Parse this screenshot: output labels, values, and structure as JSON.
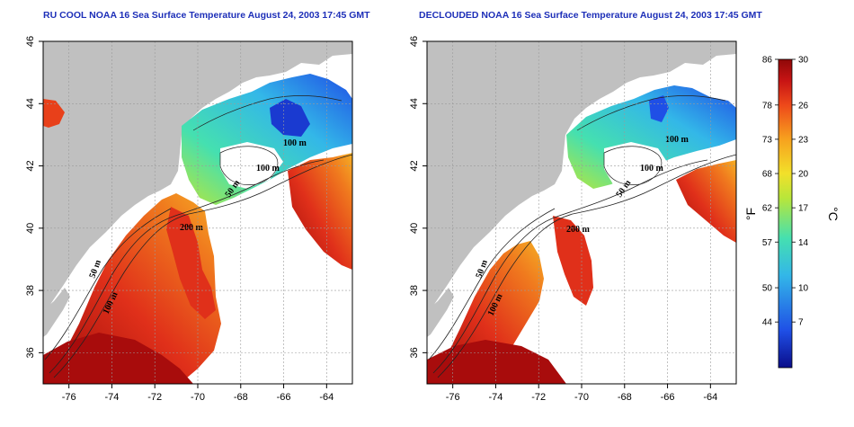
{
  "panels": [
    {
      "title": "RU COOL NOAA 16 Sea Surface Temperature August 24, 2003 17:45 GMT",
      "contour_labels": [
        "100 m",
        "100 m",
        "50 m",
        "200 m",
        "50 m",
        "100 m"
      ]
    },
    {
      "title": "DECLOUDED NOAA 16 Sea Surface Temperature August 24, 2003 17:45 GMT",
      "contour_labels": [
        "100 m",
        "100 m",
        "50 m",
        "200 m",
        "50 m",
        "100 m"
      ]
    }
  ],
  "axes": {
    "x_ticks": [
      "-76",
      "-74",
      "-72",
      "-70",
      "-68",
      "-66",
      "-64"
    ],
    "y_ticks": [
      "36",
      "38",
      "40",
      "42",
      "44",
      "46"
    ],
    "lon_range": [
      -77.2,
      -62.8
    ],
    "lat_range": [
      35.0,
      46.0
    ],
    "grid": "dotted"
  },
  "colorbar": {
    "fahrenheit_ticks": [
      "86",
      "78",
      "73",
      "68",
      "62",
      "57",
      "50",
      "44"
    ],
    "celsius_ticks": [
      "30",
      "26",
      "23",
      "20",
      "17",
      "14",
      "10",
      "7"
    ],
    "fahrenheit_unit": "°F",
    "celsius_unit": "°C",
    "range_c": [
      3,
      30
    ],
    "colors": [
      "#0a0d8a",
      "#1f4fe6",
      "#33b7e8",
      "#45e0b0",
      "#b8e63a",
      "#f2e02a",
      "#f7a21e",
      "#ee4a1a",
      "#c81414",
      "#8f0808"
    ]
  },
  "map_colors": {
    "land": "#c0c0c0",
    "no_data": "#ffffff",
    "contour": "#222222"
  }
}
